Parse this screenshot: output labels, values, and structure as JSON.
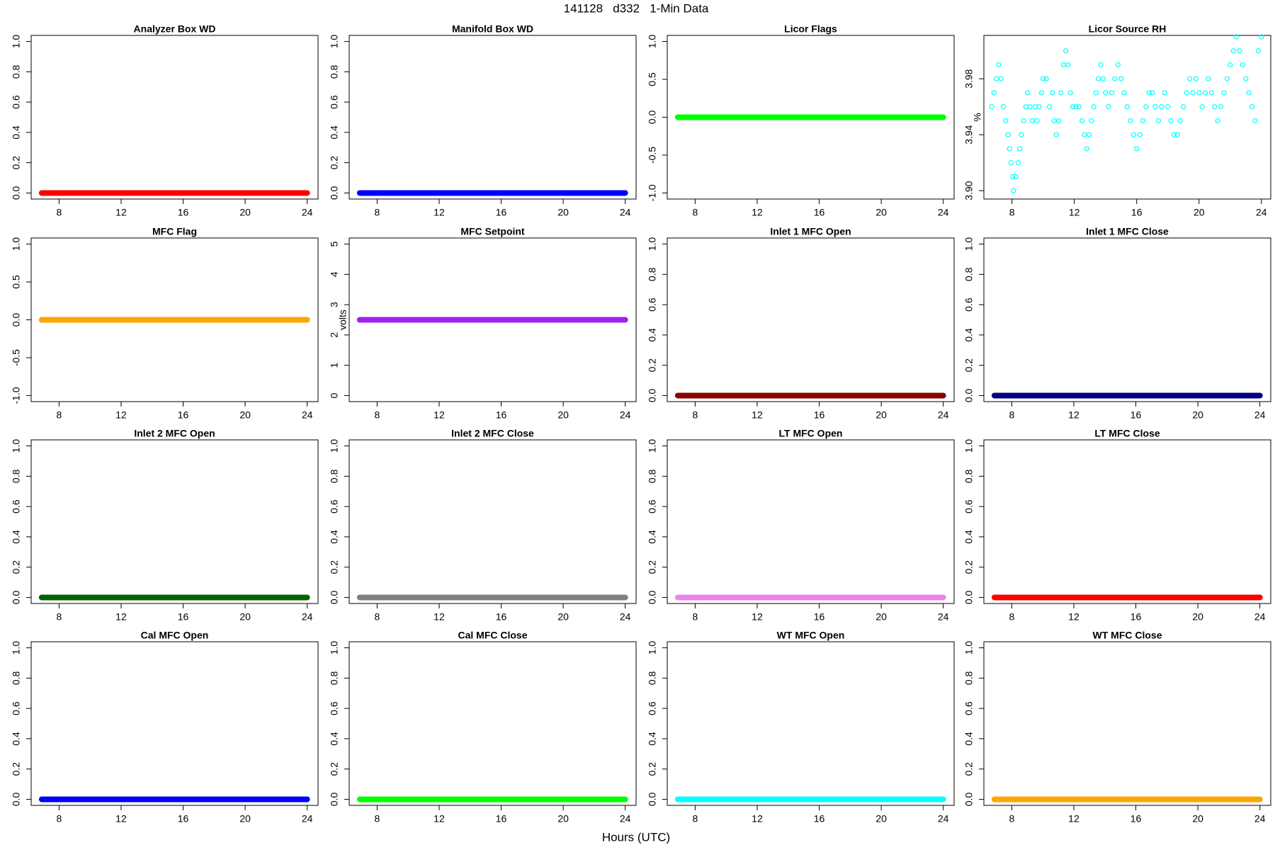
{
  "title": "141128   d332   1-Min Data",
  "xlabel": "Hours (UTC)",
  "chart_data": [
    {
      "type": "line",
      "title": "Analyzer Box WD",
      "color": "#ff0000",
      "x": [
        6.88,
        24
      ],
      "values": [
        0,
        0
      ],
      "xlim": [
        6.2,
        24.7
      ],
      "xticks": [
        8,
        12,
        16,
        20,
        24
      ],
      "ylim": [
        -0.04,
        1.04
      ],
      "yticks": [
        {
          "value": 0,
          "label": "0.0"
        },
        0.2,
        0.4,
        0.6,
        0.8,
        {
          "value": 1,
          "label": "1.0"
        }
      ]
    },
    {
      "type": "line",
      "title": "Manifold Box WD",
      "color": "#0000ff",
      "x": [
        6.88,
        24
      ],
      "values": [
        0,
        0
      ],
      "xlim": [
        6.2,
        24.7
      ],
      "xticks": [
        8,
        12,
        16,
        20,
        24
      ],
      "ylim": [
        -0.04,
        1.04
      ],
      "yticks": [
        {
          "value": 0,
          "label": "0.0"
        },
        0.2,
        0.4,
        0.6,
        0.8,
        {
          "value": 1,
          "label": "1.0"
        }
      ]
    },
    {
      "type": "line",
      "title": "Licor Flags",
      "color": "#00ff00",
      "x": [
        6.88,
        24
      ],
      "values": [
        0,
        0
      ],
      "xlim": [
        6.2,
        24.7
      ],
      "xticks": [
        8,
        12,
        16,
        20,
        24
      ],
      "ylim": [
        -1.08,
        1.08
      ],
      "yticks": [
        {
          "value": -1,
          "label": "-1.0"
        },
        -0.5,
        {
          "value": 0,
          "label": "0.0"
        },
        0.5,
        {
          "value": 1,
          "label": "1.0"
        }
      ]
    },
    {
      "type": "scatter",
      "title": "Licor Source RH",
      "ylabel": "%",
      "color": "#00ffff",
      "x": [
        6.7,
        6.85,
        7.0,
        7.15,
        7.3,
        7.45,
        7.6,
        7.75,
        7.85,
        7.95,
        8.05,
        8.1,
        8.25,
        8.4,
        8.5,
        8.6,
        8.75,
        8.9,
        9.0,
        9.15,
        9.3,
        9.5,
        9.6,
        9.75,
        9.9,
        10.0,
        10.2,
        10.4,
        10.6,
        10.7,
        10.85,
        11.0,
        11.15,
        11.3,
        11.45,
        11.6,
        11.75,
        11.9,
        12.1,
        12.3,
        12.5,
        12.65,
        12.8,
        12.95,
        13.1,
        13.25,
        13.4,
        13.55,
        13.7,
        13.85,
        14.0,
        14.2,
        14.4,
        14.6,
        14.8,
        15.0,
        15.2,
        15.4,
        15.6,
        15.8,
        16.0,
        16.2,
        16.4,
        16.6,
        16.8,
        17.0,
        17.2,
        17.4,
        17.6,
        17.8,
        18.0,
        18.2,
        18.4,
        18.6,
        18.8,
        19.0,
        19.2,
        19.4,
        19.6,
        19.8,
        20.0,
        20.2,
        20.4,
        20.6,
        20.8,
        21.0,
        21.2,
        21.4,
        21.6,
        21.8,
        22.0,
        22.2,
        22.4,
        22.6,
        22.8,
        23.0,
        23.2,
        23.4,
        23.6,
        23.8,
        24.0
      ],
      "values": [
        3.96,
        3.97,
        3.98,
        3.99,
        3.98,
        3.96,
        3.95,
        3.94,
        3.93,
        3.92,
        3.91,
        3.9,
        3.91,
        3.92,
        3.93,
        3.94,
        3.95,
        3.96,
        3.97,
        3.96,
        3.95,
        3.96,
        3.95,
        3.96,
        3.97,
        3.98,
        3.98,
        3.96,
        3.97,
        3.95,
        3.94,
        3.95,
        3.97,
        3.99,
        4.0,
        3.99,
        3.97,
        3.96,
        3.96,
        3.96,
        3.95,
        3.94,
        3.93,
        3.94,
        3.95,
        3.96,
        3.97,
        3.98,
        3.99,
        3.98,
        3.97,
        3.96,
        3.97,
        3.98,
        3.99,
        3.98,
        3.97,
        3.96,
        3.95,
        3.94,
        3.93,
        3.94,
        3.95,
        3.96,
        3.97,
        3.97,
        3.96,
        3.95,
        3.96,
        3.97,
        3.96,
        3.95,
        3.94,
        3.94,
        3.95,
        3.96,
        3.97,
        3.98,
        3.97,
        3.98,
        3.97,
        3.96,
        3.97,
        3.98,
        3.97,
        3.96,
        3.95,
        3.96,
        3.97,
        3.98,
        3.99,
        4.0,
        4.01,
        4.0,
        3.99,
        3.98,
        3.97,
        3.96,
        3.95,
        4.0,
        4.01
      ],
      "xlim": [
        6.2,
        24.6
      ],
      "xticks": [
        8,
        12,
        16,
        20,
        24
      ],
      "ylim": [
        3.894,
        4.011
      ],
      "yticks": [
        {
          "value": 3.9,
          "label": "3.90"
        },
        3.94,
        3.98
      ]
    },
    {
      "type": "line",
      "title": "MFC Flag",
      "color": "#ffa500",
      "x": [
        6.88,
        24
      ],
      "values": [
        0,
        0
      ],
      "xlim": [
        6.2,
        24.7
      ],
      "xticks": [
        8,
        12,
        16,
        20,
        24
      ],
      "ylim": [
        -1.08,
        1.08
      ],
      "yticks": [
        {
          "value": -1,
          "label": "-1.0"
        },
        -0.5,
        {
          "value": 0,
          "label": "0.0"
        },
        0.5,
        {
          "value": 1,
          "label": "1.0"
        }
      ]
    },
    {
      "type": "line",
      "title": "MFC Setpoint",
      "ylabel": "volts",
      "color": "#a020f0",
      "x": [
        6.88,
        24
      ],
      "values": [
        2.5,
        2.5
      ],
      "xlim": [
        6.2,
        24.7
      ],
      "xticks": [
        8,
        12,
        16,
        20,
        24
      ],
      "ylim": [
        -0.2,
        5.2
      ],
      "yticks": [
        0,
        1,
        2,
        3,
        4,
        5
      ]
    },
    {
      "type": "line",
      "title": "Inlet 1 MFC Open",
      "color": "#8b0000",
      "x": [
        6.88,
        24
      ],
      "values": [
        0,
        0
      ],
      "xlim": [
        6.2,
        24.7
      ],
      "xticks": [
        8,
        12,
        16,
        20,
        24
      ],
      "ylim": [
        -0.04,
        1.04
      ],
      "yticks": [
        {
          "value": 0,
          "label": "0.0"
        },
        0.2,
        0.4,
        0.6,
        0.8,
        {
          "value": 1,
          "label": "1.0"
        }
      ]
    },
    {
      "type": "line",
      "title": "Inlet 1 MFC Close",
      "color": "#000080",
      "x": [
        6.88,
        24
      ],
      "values": [
        0,
        0
      ],
      "xlim": [
        6.2,
        24.7
      ],
      "xticks": [
        8,
        12,
        16,
        20,
        24
      ],
      "ylim": [
        -0.04,
        1.04
      ],
      "yticks": [
        {
          "value": 0,
          "label": "0.0"
        },
        0.2,
        0.4,
        0.6,
        0.8,
        {
          "value": 1,
          "label": "1.0"
        }
      ]
    },
    {
      "type": "line",
      "title": "Inlet 2 MFC Open",
      "color": "#006400",
      "x": [
        6.88,
        24
      ],
      "values": [
        0,
        0
      ],
      "xlim": [
        6.2,
        24.7
      ],
      "xticks": [
        8,
        12,
        16,
        20,
        24
      ],
      "ylim": [
        -0.04,
        1.04
      ],
      "yticks": [
        {
          "value": 0,
          "label": "0.0"
        },
        0.2,
        0.4,
        0.6,
        0.8,
        {
          "value": 1,
          "label": "1.0"
        }
      ]
    },
    {
      "type": "line",
      "title": "Inlet 2 MFC Close",
      "color": "#808080",
      "x": [
        6.88,
        24
      ],
      "values": [
        0,
        0
      ],
      "xlim": [
        6.2,
        24.7
      ],
      "xticks": [
        8,
        12,
        16,
        20,
        24
      ],
      "ylim": [
        -0.04,
        1.04
      ],
      "yticks": [
        {
          "value": 0,
          "label": "0.0"
        },
        0.2,
        0.4,
        0.6,
        0.8,
        {
          "value": 1,
          "label": "1.0"
        }
      ]
    },
    {
      "type": "line",
      "title": "LT MFC Open",
      "color": "#ee82ee",
      "x": [
        6.88,
        24
      ],
      "values": [
        0,
        0
      ],
      "xlim": [
        6.2,
        24.7
      ],
      "xticks": [
        8,
        12,
        16,
        20,
        24
      ],
      "ylim": [
        -0.04,
        1.04
      ],
      "yticks": [
        {
          "value": 0,
          "label": "0.0"
        },
        0.2,
        0.4,
        0.6,
        0.8,
        {
          "value": 1,
          "label": "1.0"
        }
      ]
    },
    {
      "type": "line",
      "title": "LT MFC Close",
      "color": "#ff0000",
      "x": [
        6.88,
        24
      ],
      "values": [
        0,
        0
      ],
      "xlim": [
        6.2,
        24.7
      ],
      "xticks": [
        8,
        12,
        16,
        20,
        24
      ],
      "ylim": [
        -0.04,
        1.04
      ],
      "yticks": [
        {
          "value": 0,
          "label": "0.0"
        },
        0.2,
        0.4,
        0.6,
        0.8,
        {
          "value": 1,
          "label": "1.0"
        }
      ]
    },
    {
      "type": "line",
      "title": "Cal MFC Open",
      "color": "#0000ff",
      "x": [
        6.88,
        24
      ],
      "values": [
        0,
        0
      ],
      "xlim": [
        6.2,
        24.7
      ],
      "xticks": [
        8,
        12,
        16,
        20,
        24
      ],
      "ylim": [
        -0.04,
        1.04
      ],
      "yticks": [
        {
          "value": 0,
          "label": "0.0"
        },
        0.2,
        0.4,
        0.6,
        0.8,
        {
          "value": 1,
          "label": "1.0"
        }
      ]
    },
    {
      "type": "line",
      "title": "Cal MFC Close",
      "color": "#00ff00",
      "x": [
        6.88,
        24
      ],
      "values": [
        0,
        0
      ],
      "xlim": [
        6.2,
        24.7
      ],
      "xticks": [
        8,
        12,
        16,
        20,
        24
      ],
      "ylim": [
        -0.04,
        1.04
      ],
      "yticks": [
        {
          "value": 0,
          "label": "0.0"
        },
        0.2,
        0.4,
        0.6,
        0.8,
        {
          "value": 1,
          "label": "1.0"
        }
      ]
    },
    {
      "type": "line",
      "title": "WT MFC Open",
      "color": "#00ffff",
      "x": [
        6.88,
        24
      ],
      "values": [
        0,
        0
      ],
      "xlim": [
        6.2,
        24.7
      ],
      "xticks": [
        8,
        12,
        16,
        20,
        24
      ],
      "ylim": [
        -0.04,
        1.04
      ],
      "yticks": [
        {
          "value": 0,
          "label": "0.0"
        },
        0.2,
        0.4,
        0.6,
        0.8,
        {
          "value": 1,
          "label": "1.0"
        }
      ]
    },
    {
      "type": "line",
      "title": "WT MFC Close",
      "color": "#ffa500",
      "x": [
        6.88,
        24
      ],
      "values": [
        0,
        0
      ],
      "xlim": [
        6.2,
        24.7
      ],
      "xticks": [
        8,
        12,
        16,
        20,
        24
      ],
      "ylim": [
        -0.04,
        1.04
      ],
      "yticks": [
        {
          "value": 0,
          "label": "0.0"
        },
        0.2,
        0.4,
        0.6,
        0.8,
        {
          "value": 1,
          "label": "1.0"
        }
      ]
    }
  ]
}
